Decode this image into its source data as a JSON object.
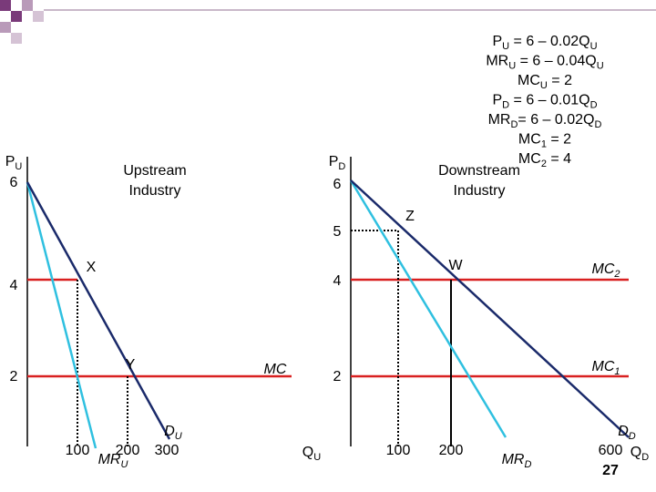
{
  "equations": [
    [
      "P",
      "U",
      " = 6 – 0.02Q",
      "U"
    ],
    [
      "MR",
      "U",
      " = 6 – 0.04Q",
      "U"
    ],
    [
      "MC",
      "U",
      " = 2"
    ],
    [
      "P",
      "D",
      " = 6 – 0.01Q",
      "D"
    ],
    [
      "MR",
      "D",
      "= 6 – 0.02Q",
      "D"
    ],
    [
      "MC",
      "1",
      " = 2"
    ],
    [
      "MC",
      "2",
      " = 4"
    ]
  ],
  "left_panel": {
    "title_lines": [
      "Upstream",
      "Industry"
    ],
    "y_label": [
      "P",
      "U"
    ],
    "y_ticks": [
      "6",
      "4",
      "2"
    ],
    "x_ticks": [
      "100",
      "200",
      "300"
    ],
    "x_label": [
      "Q",
      "U"
    ],
    "points": [
      "X",
      "Y"
    ],
    "demand": [
      "D",
      "U"
    ],
    "marginal_revenue": [
      "MR",
      "U"
    ],
    "marginal_cost": [
      "MC"
    ]
  },
  "right_panel": {
    "title_lines": [
      "Downstream",
      "Industry"
    ],
    "y_label": [
      "P",
      "D"
    ],
    "y_ticks": [
      "6",
      "5",
      "4",
      "2"
    ],
    "x_ticks": [
      "100",
      "200",
      "600"
    ],
    "x_label": [
      "Q",
      "D"
    ],
    "points": [
      "Z",
      "W"
    ],
    "demand": [
      "D",
      "D"
    ],
    "marginal_revenue": [
      "MR",
      "D"
    ],
    "mc_high": [
      "MC",
      "2"
    ],
    "mc_low": [
      "MC",
      "1"
    ]
  },
  "page_number": "27"
}
